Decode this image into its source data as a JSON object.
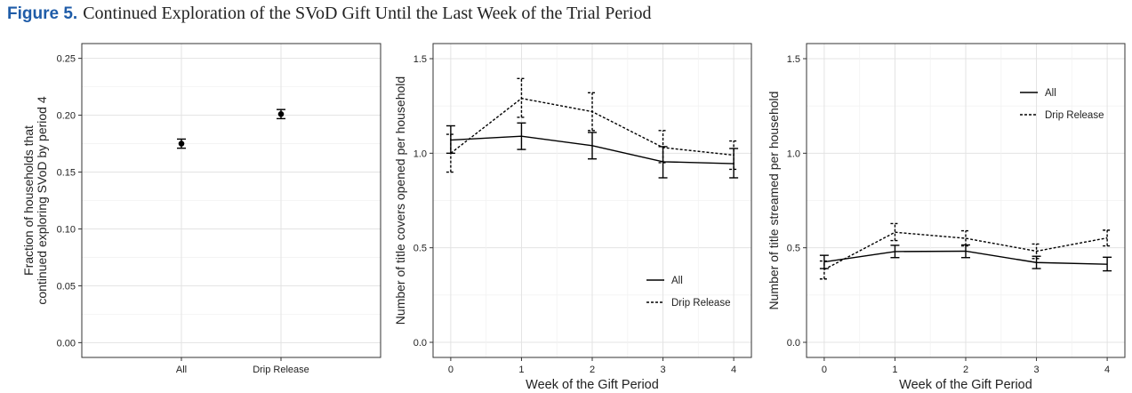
{
  "figure": {
    "label": "Figure 5.",
    "caption": "Continued Exploration of the SVoD Gift Until the Last Week of the Trial Period"
  },
  "chart_data": [
    {
      "type": "scatter",
      "title": "",
      "xlabel": "",
      "ylabel": [
        "Fraction of households that",
        "continued exploring SVoD by period 4"
      ],
      "categories": [
        "All",
        "Drip Release"
      ],
      "values": [
        0.175,
        0.201
      ],
      "error_low": [
        0.171,
        0.197
      ],
      "error_high": [
        0.179,
        0.205
      ],
      "ylim": [
        -0.013,
        0.263
      ],
      "yticks": [
        0.0,
        0.05,
        0.1,
        0.15,
        0.2,
        0.25
      ],
      "ytick_labels": [
        "0.00",
        "0.05",
        "0.10",
        "0.15",
        "0.20",
        "0.25"
      ],
      "grid": true
    },
    {
      "type": "line",
      "title": "",
      "xlabel": "Week of the Gift Period",
      "ylabel": "Number of title covers opened per household",
      "x": [
        0,
        1,
        2,
        3,
        4
      ],
      "xlim": [
        -0.25,
        4.25
      ],
      "ylim": [
        -0.08,
        1.58
      ],
      "yticks": [
        0.0,
        0.5,
        1.0,
        1.5
      ],
      "ytick_labels": [
        "0.0",
        "0.5",
        "1.0",
        "1.5"
      ],
      "grid": true,
      "legend_position": "bottom-right",
      "series": [
        {
          "name": "All",
          "style": "solid",
          "values": [
            1.07,
            1.09,
            1.04,
            0.955,
            0.945
          ],
          "error_low": [
            1.0,
            1.02,
            0.97,
            0.87,
            0.87
          ],
          "error_high": [
            1.145,
            1.16,
            1.11,
            1.035,
            1.025
          ]
        },
        {
          "name": "Drip Release",
          "style": "dashed",
          "values": [
            1.0,
            1.29,
            1.22,
            1.03,
            0.99
          ],
          "error_low": [
            0.9,
            1.19,
            1.12,
            0.95,
            0.915
          ],
          "error_high": [
            1.1,
            1.395,
            1.32,
            1.12,
            1.065
          ]
        }
      ]
    },
    {
      "type": "line",
      "title": "",
      "xlabel": "Week of the Gift Period",
      "ylabel": "Number of title streamed per household",
      "x": [
        0,
        1,
        2,
        3,
        4
      ],
      "xlim": [
        -0.25,
        4.25
      ],
      "ylim": [
        -0.08,
        1.58
      ],
      "yticks": [
        0.0,
        0.5,
        1.0,
        1.5
      ],
      "ytick_labels": [
        "0.0",
        "0.5",
        "1.0",
        "1.5"
      ],
      "grid": true,
      "legend_position": "top-right",
      "series": [
        {
          "name": "All",
          "style": "solid",
          "values": [
            0.425,
            0.48,
            0.482,
            0.422,
            0.413
          ],
          "error_low": [
            0.39,
            0.448,
            0.448,
            0.39,
            0.378
          ],
          "error_high": [
            0.46,
            0.513,
            0.515,
            0.455,
            0.45
          ]
        },
        {
          "name": "Drip Release",
          "style": "dashed",
          "values": [
            0.385,
            0.582,
            0.55,
            0.482,
            0.552
          ],
          "error_low": [
            0.335,
            0.538,
            0.51,
            0.443,
            0.51
          ],
          "error_high": [
            0.43,
            0.628,
            0.59,
            0.52,
            0.593
          ]
        }
      ]
    }
  ]
}
